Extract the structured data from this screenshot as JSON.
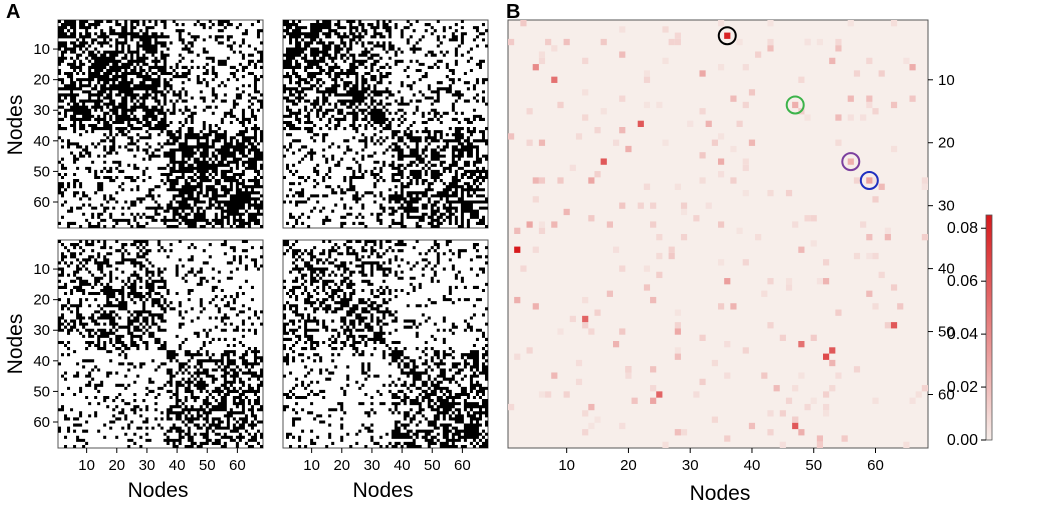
{
  "panels": {
    "a_label": "A",
    "b_label": "B"
  },
  "chart_data": [
    {
      "panel": "A",
      "type": "heatmap",
      "description_values": "binary adjacency matrices (4 subplots), 68x68 nodes",
      "n_nodes": 68,
      "xlabel": "Nodes",
      "ylabel": "Nodes",
      "x_ticks": [
        10,
        20,
        30,
        40,
        50,
        60
      ],
      "y_ticks": [
        10,
        20,
        30,
        40,
        50,
        60
      ],
      "colors": {
        "on": "#000000",
        "off": "#ffffff"
      },
      "subplots": [
        {
          "id": "top-left",
          "community_density": {
            "c1c1": 0.68,
            "c2c2": 0.72,
            "c1c2": 0.3
          }
        },
        {
          "id": "top-right",
          "community_density": {
            "c1c1": 0.55,
            "c2c2": 0.58,
            "c1c2": 0.22
          }
        },
        {
          "id": "bottom-left",
          "community_density": {
            "c1c1": 0.42,
            "c2c2": 0.5,
            "c1c2": 0.18
          }
        },
        {
          "id": "bottom-right",
          "community_density": {
            "c1c1": 0.45,
            "c2c2": 0.52,
            "c1c2": 0.2
          }
        }
      ]
    },
    {
      "panel": "B",
      "type": "heatmap",
      "n_nodes": 68,
      "xlabel": "Nodes",
      "ylabel": "",
      "x_ticks": [
        10,
        20,
        30,
        40,
        50,
        60
      ],
      "y_ticks": [
        10,
        20,
        30,
        40,
        50,
        60
      ],
      "y_axis_side": "right",
      "colorbar": {
        "range": [
          0,
          0.085
        ],
        "ticks": [
          "0.00",
          "0.02",
          "0.04",
          "0.06",
          "0.08"
        ],
        "tick_values": [
          0.0,
          0.02,
          0.04,
          0.06,
          0.08
        ],
        "low_color": "#f7eeea",
        "high_color": "#d7191c"
      },
      "highlighted_cells": [
        {
          "x": 36,
          "y": 3,
          "value": 0.082,
          "circle_color": "#000000"
        },
        {
          "x": 47,
          "y": 14,
          "value": 0.025,
          "circle_color": "#3cb34a"
        },
        {
          "x": 56,
          "y": 23,
          "value": 0.025,
          "circle_color": "#7b3f9e"
        },
        {
          "x": 59,
          "y": 26,
          "value": 0.03,
          "circle_color": "#1f2fbf"
        }
      ],
      "strong_cells": [
        {
          "x": 2,
          "y": 37,
          "value": 0.085
        },
        {
          "x": 22,
          "y": 17,
          "value": 0.06
        },
        {
          "x": 16,
          "y": 23,
          "value": 0.06
        },
        {
          "x": 13,
          "y": 48,
          "value": 0.055
        },
        {
          "x": 25,
          "y": 60,
          "value": 0.055
        },
        {
          "x": 47,
          "y": 65,
          "value": 0.06
        },
        {
          "x": 52,
          "y": 54,
          "value": 0.065
        },
        {
          "x": 53,
          "y": 53,
          "value": 0.06
        },
        {
          "x": 63,
          "y": 49,
          "value": 0.06
        },
        {
          "x": 8,
          "y": 10,
          "value": 0.05
        },
        {
          "x": 5,
          "y": 8,
          "value": 0.04
        },
        {
          "x": 48,
          "y": 52,
          "value": 0.05
        }
      ]
    }
  ]
}
